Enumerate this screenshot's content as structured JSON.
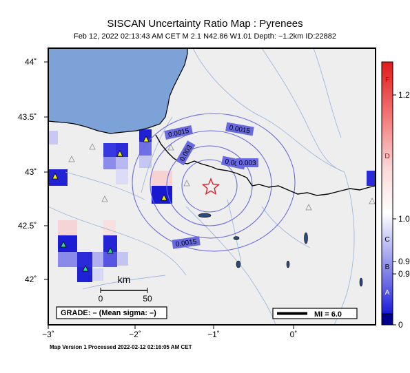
{
  "header": {
    "title": "SISCAN Uncertainty Ratio Map : Pyrenees",
    "subtitle": "Feb 12, 2022 02:13:43 AM CET   M 2.1    N42.86 W1.01    Depth: −1.2km    ID:22882"
  },
  "footer": {
    "processed": "Map Version 1 Processed 2022-02-12 02:16:05 AM CET"
  },
  "axes": {
    "lat_ticks": [
      "44˚",
      "43.5˚",
      "43˚",
      "42.5˚",
      "42˚"
    ],
    "lon_ticks": [
      "−3˚",
      "−2˚",
      "−1˚",
      "0˚"
    ]
  },
  "contour_labels": [
    "0.0015",
    "0.0015",
    "0.003",
    "0.003",
    "0.003",
    "0.0015"
  ],
  "scale_bar": {
    "unit": "km",
    "labels": [
      "0",
      "50"
    ]
  },
  "grade_box": "GRADE: – (Mean sigma: –)",
  "mi_legend": "MI = 6.0",
  "colorbar": {
    "grades": [
      "F",
      "D",
      "C",
      "B",
      "A"
    ],
    "values": [
      "1.2",
      "1.0",
      "0.9",
      "0.9",
      "0"
    ]
  },
  "colors": {
    "sea": "#7da2d8",
    "land": "#eeeeee",
    "epicenter": "#e02020",
    "border": "#000000"
  }
}
